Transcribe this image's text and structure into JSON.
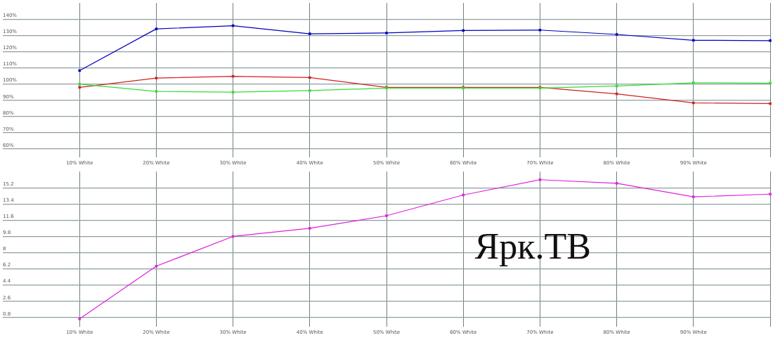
{
  "chart_data": [
    {
      "type": "line",
      "categories": [
        "10% White",
        "20% White",
        "30% White",
        "40% White",
        "50% White",
        "60% White",
        "70% White",
        "80% White",
        "90% White",
        null
      ],
      "series": [
        {
          "color": "#0000c0",
          "values": [
            108.3,
            134,
            136,
            131,
            131.5,
            133,
            133.3,
            130.6,
            127,
            126.8
          ]
        },
        {
          "color": "#d02020",
          "values": [
            98,
            103.7,
            104.8,
            104,
            98,
            98,
            98,
            94,
            88.4,
            88
          ]
        },
        {
          "color": "#33dd33",
          "values": [
            100,
            95.5,
            95,
            96,
            97.5,
            97.5,
            97.5,
            98.8,
            100.8,
            100.6
          ]
        }
      ],
      "ylim": [
        55,
        150
      ],
      "yticks": [
        {
          "value": 60,
          "label": "60%"
        },
        {
          "value": 70,
          "label": "70%"
        },
        {
          "value": 80,
          "label": "80%"
        },
        {
          "value": 90,
          "label": "90%"
        },
        {
          "value": 100,
          "label": "100%"
        },
        {
          "value": 110,
          "label": "110%"
        },
        {
          "value": 120,
          "label": "120%"
        },
        {
          "value": 130,
          "label": "130%"
        },
        {
          "value": 140,
          "label": "140%"
        }
      ],
      "grid": true,
      "marker": "square",
      "legend": false
    },
    {
      "type": "line",
      "categories": [
        "10% White",
        "20% White",
        "30% White",
        "40% White",
        "50% White",
        "60% White",
        "70% White",
        "80% White",
        "90% White",
        null
      ],
      "series": [
        {
          "color": "#dd22dd",
          "values": [
            0.65,
            6.5,
            9.8,
            10.7,
            12.1,
            14.4,
            16.1,
            15.7,
            14.2,
            14.5
          ]
        }
      ],
      "ylim": [
        -0.2,
        17
      ],
      "yticks": [
        0.8,
        2.6,
        4.4,
        6.2,
        8,
        9.8,
        11.6,
        13.4,
        15.2
      ],
      "grid": true,
      "marker": "square",
      "legend": false,
      "annotations": [
        "Ярк.ТВ"
      ]
    }
  ]
}
